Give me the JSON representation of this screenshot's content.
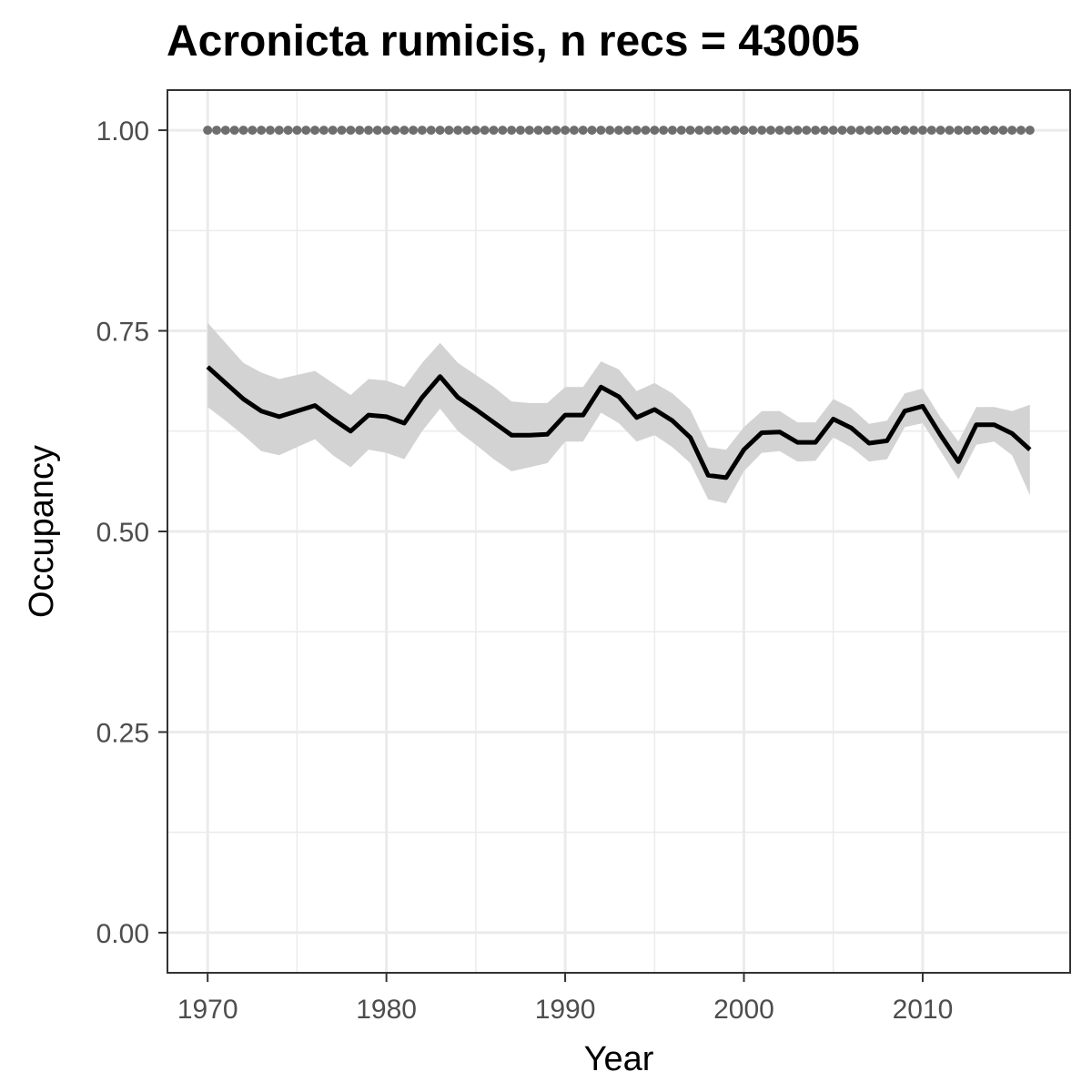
{
  "chart_data": {
    "type": "line",
    "title": "Acronicta rumicis, n recs = 43005",
    "xlabel": "Year",
    "ylabel": "Occupancy",
    "xlim": [
      1967.75,
      2018.25
    ],
    "ylim": [
      -0.05,
      1.05
    ],
    "x_ticks": [
      1970,
      1980,
      1990,
      2000,
      2010
    ],
    "x_tick_labels": [
      "1970",
      "1980",
      "1990",
      "2000",
      "2010"
    ],
    "y_ticks": [
      0,
      0.25,
      0.5,
      0.75,
      1.0
    ],
    "y_tick_labels": [
      "0.00",
      "0.25",
      "0.50",
      "0.75",
      "1.00"
    ],
    "grid": true,
    "legend": "none",
    "colors": {
      "line": "#000000",
      "ribbon": "#d3d3d3",
      "dots": "#6e6e6e",
      "grid": "#ebebeb",
      "border": "#333333"
    },
    "x": [
      1970,
      1971,
      1972,
      1973,
      1974,
      1975,
      1976,
      1977,
      1978,
      1979,
      1980,
      1981,
      1982,
      1983,
      1984,
      1985,
      1986,
      1987,
      1988,
      1989,
      1990,
      1991,
      1992,
      1993,
      1994,
      1995,
      1996,
      1997,
      1998,
      1999,
      2000,
      2001,
      2002,
      2003,
      2004,
      2005,
      2006,
      2007,
      2008,
      2009,
      2010,
      2011,
      2012,
      2013,
      2014,
      2015,
      2016
    ],
    "series": [
      {
        "values": [
          0.705,
          0.685,
          0.665,
          0.65,
          0.643,
          0.65,
          0.657,
          0.64,
          0.625,
          0.645,
          0.643,
          0.635,
          0.667,
          0.693,
          0.667,
          0.652,
          0.636,
          0.62,
          0.62,
          0.621,
          0.645,
          0.645,
          0.68,
          0.668,
          0.642,
          0.652,
          0.638,
          0.617,
          0.57,
          0.567,
          0.602,
          0.623,
          0.624,
          0.611,
          0.611,
          0.64,
          0.629,
          0.61,
          0.613,
          0.65,
          0.656,
          0.62,
          0.587,
          0.633,
          0.633,
          0.622,
          0.602
        ],
        "lower": [
          0.655,
          0.638,
          0.62,
          0.6,
          0.595,
          0.605,
          0.615,
          0.595,
          0.58,
          0.602,
          0.598,
          0.59,
          0.625,
          0.653,
          0.625,
          0.608,
          0.59,
          0.575,
          0.58,
          0.585,
          0.612,
          0.612,
          0.648,
          0.635,
          0.612,
          0.62,
          0.605,
          0.585,
          0.54,
          0.535,
          0.575,
          0.598,
          0.6,
          0.587,
          0.588,
          0.617,
          0.605,
          0.587,
          0.59,
          0.63,
          0.635,
          0.6,
          0.565,
          0.608,
          0.612,
          0.595,
          0.545
        ],
        "upper": [
          0.76,
          0.735,
          0.71,
          0.698,
          0.69,
          0.695,
          0.7,
          0.685,
          0.67,
          0.69,
          0.688,
          0.68,
          0.71,
          0.735,
          0.71,
          0.695,
          0.68,
          0.662,
          0.66,
          0.66,
          0.68,
          0.68,
          0.712,
          0.702,
          0.675,
          0.685,
          0.672,
          0.652,
          0.605,
          0.602,
          0.63,
          0.65,
          0.65,
          0.636,
          0.636,
          0.665,
          0.654,
          0.634,
          0.638,
          0.672,
          0.678,
          0.642,
          0.612,
          0.655,
          0.655,
          0.65,
          0.658
        ]
      },
      {
        "values": [
          1,
          1,
          1,
          1,
          1,
          1,
          1,
          1,
          1,
          1,
          1,
          1,
          1,
          1,
          1,
          1,
          1,
          1,
          1,
          1,
          1,
          1,
          1,
          1,
          1,
          1,
          1,
          1,
          1,
          1,
          1,
          1,
          1,
          1,
          1,
          1,
          1,
          1,
          1,
          1,
          1,
          1,
          1,
          1,
          1,
          1,
          1
        ]
      }
    ]
  }
}
